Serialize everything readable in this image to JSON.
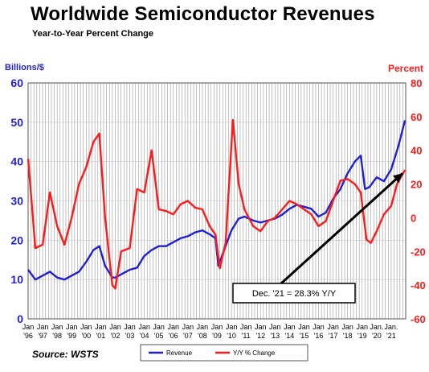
{
  "title": "Worldwide Semiconductor Revenues",
  "subtitle": "Year-to-Year Percent Change",
  "left_axis_label": "Billions/$",
  "right_axis_label": "Percent",
  "source": "Source: WSTS",
  "annotation": "Dec. '21 = 28.3% Y/Y",
  "colors": {
    "revenue": "#1f1fd6",
    "yoy": "#ff1a1a",
    "left_axis": "#1f1fd6",
    "right_axis": "#ff1a1a",
    "grid": "#9a9a9a"
  },
  "chart_data": {
    "type": "line",
    "grid": true,
    "legend_position": "bottom",
    "x_range": [
      1996,
      2022
    ],
    "left_ylim": [
      0,
      60
    ],
    "right_ylim": [
      -60,
      80
    ],
    "left_ticks": [
      "0",
      "10",
      "20",
      "30",
      "40",
      "50",
      "60"
    ],
    "right_ticks": [
      "-60",
      "-40",
      "-20",
      "0",
      "20",
      "40",
      "60",
      "80"
    ],
    "x_tick_labels": [
      {
        "top": "Jan",
        "bottom": "'96"
      },
      {
        "top": "Jan",
        "bottom": "'97"
      },
      {
        "top": "Jan",
        "bottom": "'98"
      },
      {
        "top": "Jan",
        "bottom": "'99"
      },
      {
        "top": "Jan",
        "bottom": "'00"
      },
      {
        "top": "Jan",
        "bottom": "'01"
      },
      {
        "top": "Jan",
        "bottom": "'02"
      },
      {
        "top": "Jan",
        "bottom": "'03"
      },
      {
        "top": "Jan",
        "bottom": "'04"
      },
      {
        "top": "Jan",
        "bottom": "'05"
      },
      {
        "top": "Jan",
        "bottom": "'06"
      },
      {
        "top": "Jan",
        "bottom": "'07"
      },
      {
        "top": "Jan",
        "bottom": "'08"
      },
      {
        "top": "Jan",
        "bottom": "'09"
      },
      {
        "top": "Jan",
        "bottom": "'10"
      },
      {
        "top": "Jan",
        "bottom": "'11"
      },
      {
        "top": "Jan",
        "bottom": "'12"
      },
      {
        "top": "Jan",
        "bottom": "'13"
      },
      {
        "top": "Jan",
        "bottom": "'14"
      },
      {
        "top": "Jan",
        "bottom": "'15"
      },
      {
        "top": "Jan",
        "bottom": "'16"
      },
      {
        "top": "Jan",
        "bottom": "'17"
      },
      {
        "top": "Jan",
        "bottom": "'18"
      },
      {
        "top": "Jan",
        "bottom": "'19"
      },
      {
        "top": "Jan.",
        "bottom": "'20"
      },
      {
        "top": "Jan.",
        "bottom": "'21"
      }
    ],
    "series": [
      {
        "name": "Revenue",
        "axis": "left",
        "color": "#1f1fd6",
        "x": [
          1996,
          1996.5,
          1997,
          1997.5,
          1998,
          1998.5,
          1999,
          1999.5,
          2000,
          2000.5,
          2000.9,
          2001.3,
          2001.8,
          2002,
          2002.5,
          2003,
          2003.5,
          2004,
          2004.5,
          2005,
          2005.5,
          2006,
          2006.5,
          2007,
          2007.5,
          2008,
          2008.5,
          2008.9,
          2009.1,
          2009.5,
          2010,
          2010.5,
          2010.9,
          2011.5,
          2012,
          2012.5,
          2013,
          2013.5,
          2014,
          2014.5,
          2015,
          2015.5,
          2016,
          2016.5,
          2017,
          2017.5,
          2018,
          2018.5,
          2018.9,
          2019.2,
          2019.5,
          2020,
          2020.5,
          2021,
          2021.5,
          2021.95
        ],
        "values": [
          12.5,
          10,
          11,
          12,
          10.5,
          10,
          11,
          12,
          14.5,
          17.5,
          18.5,
          13.5,
          10.5,
          10.5,
          11.5,
          12.5,
          13,
          16,
          17.5,
          18.5,
          18.5,
          19.5,
          20.5,
          21,
          22,
          22.5,
          21.5,
          20.5,
          13.5,
          17.5,
          22.5,
          25.5,
          26,
          25,
          24.5,
          25,
          25.5,
          26.5,
          28,
          29,
          28.5,
          28,
          26,
          27,
          30.5,
          33,
          37,
          40,
          41.5,
          33,
          33.5,
          36,
          35,
          38,
          44,
          50.5
        ]
      },
      {
        "name": "Y/Y % Change",
        "axis": "right",
        "color": "#ff1a1a",
        "x": [
          1996,
          1996.5,
          1997,
          1997.5,
          1998,
          1998.5,
          1999,
          1999.5,
          2000,
          2000.5,
          2000.9,
          2001.3,
          2001.8,
          2002,
          2002.4,
          2003,
          2003.5,
          2004,
          2004.5,
          2005,
          2005.5,
          2006,
          2006.5,
          2007,
          2007.5,
          2008,
          2008.5,
          2008.9,
          2009.2,
          2009.6,
          2010.1,
          2010.5,
          2010.9,
          2011.5,
          2012,
          2012.5,
          2013,
          2013.5,
          2014,
          2014.5,
          2015,
          2015.5,
          2016,
          2016.5,
          2017,
          2017.5,
          2018,
          2018.5,
          2018.9,
          2019.3,
          2019.6,
          2020,
          2020.5,
          2021,
          2021.4,
          2021.95
        ],
        "values": [
          35,
          -18,
          -16,
          15,
          -5,
          -16,
          0,
          20,
          30,
          45,
          50,
          0,
          -40,
          -42,
          -20,
          -18,
          17,
          15,
          40,
          5,
          4,
          2,
          8,
          10,
          6,
          5,
          -5,
          -10,
          -30,
          -15,
          58,
          20,
          5,
          -5,
          -8,
          -2,
          0,
          5,
          10,
          8,
          5,
          2,
          -5,
          -2,
          10,
          22,
          23,
          20,
          15,
          -13,
          -15,
          -8,
          2,
          7,
          20,
          28.3
        ]
      }
    ]
  }
}
